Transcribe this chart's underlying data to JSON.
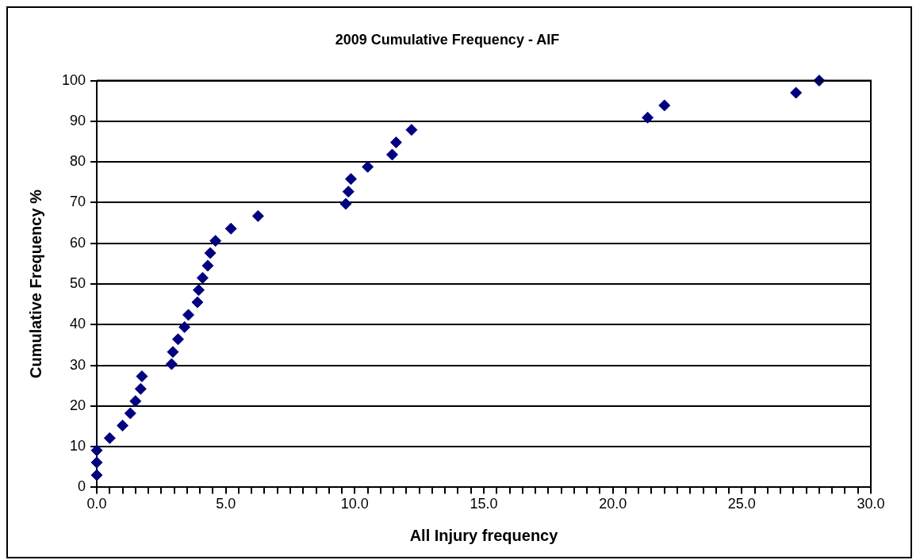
{
  "chart_data": {
    "type": "scatter",
    "title": "2009 Cumulative Frequency - AIF",
    "xlabel": "All Injury frequency",
    "ylabel": "Cumulative Frequency %",
    "marker": "diamond",
    "grid": "y",
    "legend": false,
    "xlim": [
      0,
      30
    ],
    "ylim": [
      0,
      100
    ],
    "xticks": [
      {
        "value": 0,
        "label": "0.0"
      },
      {
        "value": 0.5,
        "label": null
      },
      {
        "value": 1,
        "label": null
      },
      {
        "value": 1.5,
        "label": null
      },
      {
        "value": 2,
        "label": null
      },
      {
        "value": 2.5,
        "label": null
      },
      {
        "value": 3,
        "label": null
      },
      {
        "value": 3.5,
        "label": null
      },
      {
        "value": 4,
        "label": null
      },
      {
        "value": 4.5,
        "label": null
      },
      {
        "value": 5,
        "label": "5.0"
      },
      {
        "value": 5.5,
        "label": null
      },
      {
        "value": 6,
        "label": null
      },
      {
        "value": 6.5,
        "label": null
      },
      {
        "value": 7,
        "label": null
      },
      {
        "value": 7.5,
        "label": null
      },
      {
        "value": 8,
        "label": null
      },
      {
        "value": 8.5,
        "label": null
      },
      {
        "value": 9,
        "label": null
      },
      {
        "value": 9.5,
        "label": null
      },
      {
        "value": 10,
        "label": "10.0"
      },
      {
        "value": 10.5,
        "label": null
      },
      {
        "value": 11,
        "label": null
      },
      {
        "value": 11.5,
        "label": null
      },
      {
        "value": 12,
        "label": null
      },
      {
        "value": 12.5,
        "label": null
      },
      {
        "value": 13,
        "label": null
      },
      {
        "value": 13.5,
        "label": null
      },
      {
        "value": 14,
        "label": null
      },
      {
        "value": 14.5,
        "label": null
      },
      {
        "value": 15,
        "label": "15.0"
      },
      {
        "value": 15.5,
        "label": null
      },
      {
        "value": 16,
        "label": null
      },
      {
        "value": 16.5,
        "label": null
      },
      {
        "value": 17,
        "label": null
      },
      {
        "value": 17.5,
        "label": null
      },
      {
        "value": 18,
        "label": null
      },
      {
        "value": 18.5,
        "label": null
      },
      {
        "value": 19,
        "label": null
      },
      {
        "value": 19.5,
        "label": null
      },
      {
        "value": 20,
        "label": "20.0"
      },
      {
        "value": 20.5,
        "label": null
      },
      {
        "value": 21,
        "label": null
      },
      {
        "value": 21.5,
        "label": null
      },
      {
        "value": 22,
        "label": null
      },
      {
        "value": 22.5,
        "label": null
      },
      {
        "value": 23,
        "label": null
      },
      {
        "value": 23.5,
        "label": null
      },
      {
        "value": 24,
        "label": null
      },
      {
        "value": 24.5,
        "label": null
      },
      {
        "value": 25,
        "label": "25.0"
      },
      {
        "value": 25.5,
        "label": null
      },
      {
        "value": 26,
        "label": null
      },
      {
        "value": 26.5,
        "label": null
      },
      {
        "value": 27,
        "label": null
      },
      {
        "value": 27.5,
        "label": null
      },
      {
        "value": 28,
        "label": null
      },
      {
        "value": 28.5,
        "label": null
      },
      {
        "value": 29,
        "label": null
      },
      {
        "value": 29.5,
        "label": null
      },
      {
        "value": 30,
        "label": "30.0"
      }
    ],
    "yticks": [
      0,
      10,
      20,
      30,
      40,
      50,
      60,
      70,
      80,
      90,
      100
    ],
    "series": [
      {
        "color": "#000080",
        "x": [
          0,
          0,
          0,
          0.5,
          1.0,
          1.3,
          1.5,
          1.7,
          1.75,
          2.9,
          2.95,
          3.15,
          3.4,
          3.55,
          3.9,
          3.95,
          4.1,
          4.3,
          4.4,
          4.6,
          5.2,
          6.25,
          9.65,
          9.75,
          9.85,
          10.5,
          11.45,
          11.6,
          12.2,
          21.35,
          22.0,
          27.1,
          28.0
        ],
        "values": [
          3.0,
          6.1,
          9.1,
          12.1,
          15.2,
          18.2,
          21.2,
          24.2,
          27.3,
          30.3,
          33.3,
          36.4,
          39.4,
          42.4,
          45.5,
          48.5,
          51.5,
          54.5,
          57.6,
          60.6,
          63.6,
          66.7,
          69.7,
          72.7,
          75.8,
          78.8,
          81.8,
          84.8,
          87.9,
          90.9,
          93.9,
          97.0,
          100
        ]
      }
    ]
  }
}
